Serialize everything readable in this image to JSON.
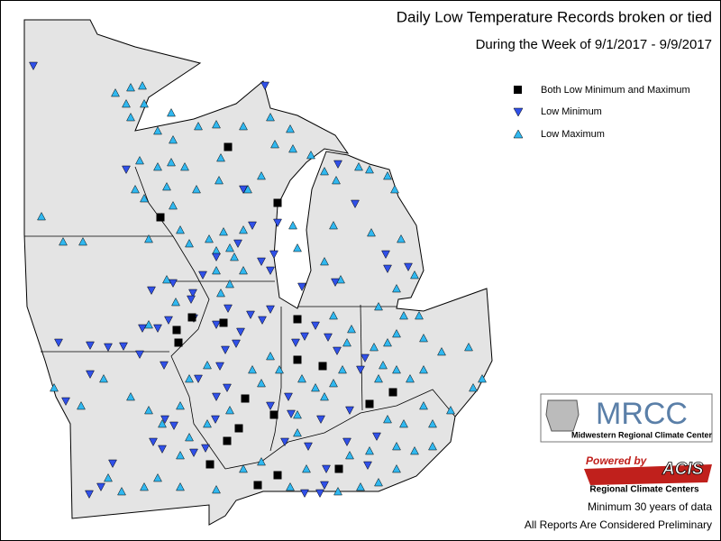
{
  "header": {
    "title": "Daily Low Temperature Records broken or tied",
    "subtitle": "During the Week of 9/1/2017 - 9/9/2017"
  },
  "legend": {
    "items": [
      "Both Low Minimum and Maximum",
      "Low Minimum",
      "Low Maximum"
    ]
  },
  "logos": {
    "mrcc": {
      "name": "MRCC",
      "full_name": "Midwestern Regional Climate Center"
    },
    "acis": {
      "powered_by": "Powered by",
      "name": "ACIS",
      "subtitle": "Regional Climate Centers"
    }
  },
  "notes": [
    "Minimum 30 years of data",
    "All Reports Are Considered Preliminary"
  ]
}
